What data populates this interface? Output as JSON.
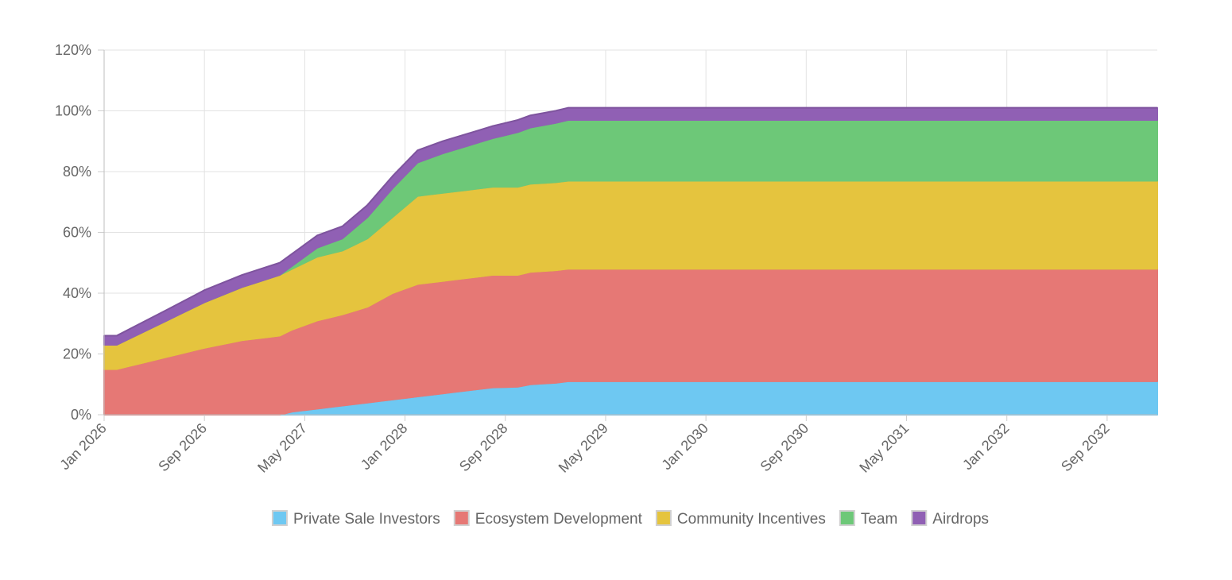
{
  "chart_data": {
    "type": "area",
    "stacked": true,
    "title": "",
    "xlabel": "",
    "ylabel": "",
    "ylim": [
      0,
      120
    ],
    "y_ticks": [
      "0%",
      "20%",
      "40%",
      "60%",
      "80%",
      "100%",
      "120%"
    ],
    "x_range": [
      "2026-01",
      "2033-01"
    ],
    "x_ticks": [
      "Jan 2026",
      "Sep 2026",
      "May 2027",
      "Jan 2028",
      "Sep 2028",
      "May 2029",
      "Jan 2030",
      "Sep 2030",
      "May 2031",
      "Jan 2032",
      "Sep 2032"
    ],
    "grid": true,
    "legend_position": "bottom",
    "series": [
      {
        "name": "Private Sale Investors",
        "color": "#6ec8f2",
        "points": [
          [
            "2026-01",
            0
          ],
          [
            "2027-03",
            0
          ],
          [
            "2027-04",
            1
          ],
          [
            "2027-06",
            2
          ],
          [
            "2027-08",
            3
          ],
          [
            "2027-10",
            4
          ],
          [
            "2027-12",
            5
          ],
          [
            "2028-02",
            6
          ],
          [
            "2028-04",
            7
          ],
          [
            "2028-06",
            8
          ],
          [
            "2028-08",
            9
          ],
          [
            "2028-10",
            9.2
          ],
          [
            "2028-11",
            10
          ],
          [
            "2029-01",
            10.5
          ],
          [
            "2029-02",
            11
          ],
          [
            "2033-01",
            11
          ]
        ]
      },
      {
        "name": "Ecosystem Development",
        "color": "#e67875",
        "points": [
          [
            "2026-01",
            15
          ],
          [
            "2026-02",
            15
          ],
          [
            "2026-06",
            19
          ],
          [
            "2026-09",
            22
          ],
          [
            "2026-12",
            24.5
          ],
          [
            "2027-03",
            26
          ],
          [
            "2027-04",
            27
          ],
          [
            "2027-06",
            29
          ],
          [
            "2027-08",
            30
          ],
          [
            "2027-10",
            31.5
          ],
          [
            "2027-12",
            35
          ],
          [
            "2028-02",
            37
          ],
          [
            "2028-04",
            37
          ],
          [
            "2028-06",
            37
          ],
          [
            "2028-08",
            37
          ],
          [
            "2028-10",
            36.8
          ],
          [
            "2028-11",
            37
          ],
          [
            "2029-01",
            37
          ],
          [
            "2029-02",
            37
          ],
          [
            "2033-01",
            37
          ]
        ]
      },
      {
        "name": "Community Incentives",
        "color": "#e5c43e",
        "points": [
          [
            "2026-01",
            8
          ],
          [
            "2026-02",
            8
          ],
          [
            "2026-06",
            12
          ],
          [
            "2026-09",
            15
          ],
          [
            "2026-12",
            17.5
          ],
          [
            "2027-03",
            20
          ],
          [
            "2027-04",
            20
          ],
          [
            "2027-06",
            21
          ],
          [
            "2027-08",
            21
          ],
          [
            "2027-10",
            22.5
          ],
          [
            "2027-12",
            25
          ],
          [
            "2028-02",
            29
          ],
          [
            "2028-04",
            29
          ],
          [
            "2028-06",
            29
          ],
          [
            "2028-08",
            29
          ],
          [
            "2028-10",
            29
          ],
          [
            "2028-11",
            29
          ],
          [
            "2029-01",
            29
          ],
          [
            "2029-02",
            29
          ],
          [
            "2033-01",
            29
          ]
        ]
      },
      {
        "name": "Team",
        "color": "#6dc878",
        "points": [
          [
            "2026-01",
            0
          ],
          [
            "2026-02",
            0
          ],
          [
            "2026-06",
            0
          ],
          [
            "2026-09",
            0
          ],
          [
            "2026-12",
            0
          ],
          [
            "2027-03",
            0
          ],
          [
            "2027-04",
            1
          ],
          [
            "2027-06",
            3
          ],
          [
            "2027-08",
            4
          ],
          [
            "2027-10",
            7
          ],
          [
            "2027-12",
            9.5
          ],
          [
            "2028-02",
            11
          ],
          [
            "2028-04",
            13
          ],
          [
            "2028-06",
            14.5
          ],
          [
            "2028-08",
            16
          ],
          [
            "2028-10",
            18
          ],
          [
            "2028-11",
            18.5
          ],
          [
            "2029-01",
            19.5
          ],
          [
            "2029-02",
            20
          ],
          [
            "2033-01",
            20
          ]
        ]
      },
      {
        "name": "Airdrops",
        "color": "#9060b4",
        "points": [
          [
            "2026-01",
            3
          ],
          [
            "2026-02",
            3
          ],
          [
            "2026-06",
            3.5
          ],
          [
            "2026-09",
            4
          ],
          [
            "2026-12",
            4
          ],
          [
            "2027-03",
            4
          ],
          [
            "2027-04",
            4
          ],
          [
            "2027-06",
            4
          ],
          [
            "2027-08",
            4
          ],
          [
            "2027-10",
            4
          ],
          [
            "2027-12",
            4
          ],
          [
            "2028-02",
            4
          ],
          [
            "2028-04",
            4
          ],
          [
            "2028-06",
            4
          ],
          [
            "2028-08",
            4
          ],
          [
            "2028-10",
            4
          ],
          [
            "2028-11",
            4
          ],
          [
            "2029-01",
            4
          ],
          [
            "2029-02",
            4
          ],
          [
            "2033-01",
            4
          ]
        ]
      }
    ]
  }
}
